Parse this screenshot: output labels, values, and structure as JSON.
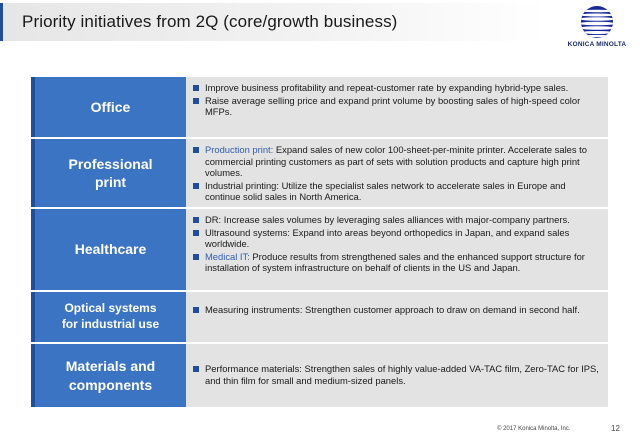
{
  "header": {
    "title": "Priority initiatives from 2Q (core/growth business)",
    "logo_text": "KONICA MINOLTA"
  },
  "rows": [
    {
      "label_lines": [
        "Office"
      ],
      "bullets": [
        {
          "lead": "",
          "text": "Improve business profitability and repeat-customer rate by expanding hybrid-type sales."
        },
        {
          "lead": "",
          "text": "Raise average selling price and expand print volume by boosting sales of high-speed color MFPs."
        }
      ]
    },
    {
      "label_lines": [
        "Professional",
        "print"
      ],
      "bullets": [
        {
          "lead": "Production print: ",
          "text": "Expand sales of new color 100-sheet-per-minite printer. Accelerate sales to commercial printing customers as part of sets with solution products and capture high print volumes."
        },
        {
          "lead": "",
          "text": "Industrial printing: Utilize the specialist sales network to accelerate sales in Europe and continue solid sales in North America."
        }
      ]
    },
    {
      "label_lines": [
        "Healthcare"
      ],
      "bullets": [
        {
          "lead": "",
          "text": "DR: Increase sales volumes by leveraging sales alliances with major-company partners."
        },
        {
          "lead": "",
          "text": "Ultrasound systems: Expand into areas beyond orthopedics in Japan, and expand sales worldwide."
        },
        {
          "lead": "Medical IT: ",
          "text": "Produce results from strengthened sales and the enhanced support structure for installation of system infrastructure on behalf of clients in the US and Japan."
        }
      ]
    },
    {
      "label_lines": [
        "Optical systems",
        "for industrial use"
      ],
      "bullets": [
        {
          "lead": "",
          "text": "Measuring instruments: Strengthen customer approach to draw on demand in second half."
        }
      ]
    },
    {
      "label_lines": [
        "Materials and",
        "components"
      ],
      "bullets": [
        {
          "lead": "",
          "text": "Performance materials: Strengthen sales of highly value-added VA-TAC film, Zero-TAC for IPS, and thin film for small and medium-sized panels."
        }
      ]
    }
  ],
  "footer": {
    "copyright": "© 2017 Konica Minolta, Inc.",
    "page_number": "12"
  },
  "colors": {
    "label_blue": "#3c74c4",
    "accent_navy": "#1f4e9c",
    "row_gray": "#e3e3e3"
  }
}
